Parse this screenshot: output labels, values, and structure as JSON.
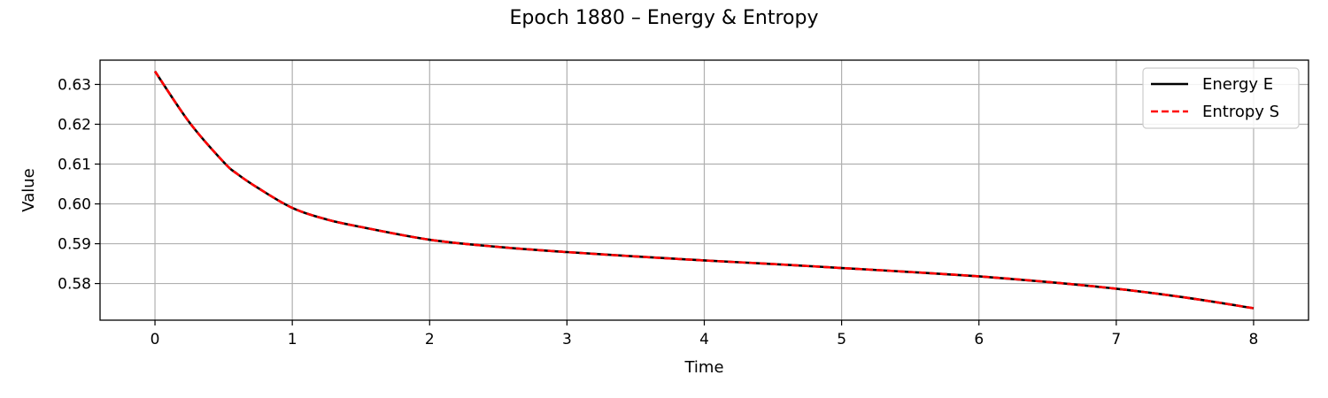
{
  "chart_data": {
    "type": "line",
    "title": "Epoch 1880 – Energy & Entropy",
    "xlabel": "Time",
    "ylabel": "Value",
    "xlim": [
      -0.4,
      8.4
    ],
    "ylim": [
      0.5708,
      0.6361
    ],
    "xticks": [
      0,
      1,
      2,
      3,
      4,
      5,
      6,
      7,
      8
    ],
    "yticks": [
      0.58,
      0.59,
      0.6,
      0.61,
      0.62,
      0.63
    ],
    "ytick_labels": [
      "0.58",
      "0.59",
      "0.60",
      "0.61",
      "0.62",
      "0.63"
    ],
    "grid": true,
    "legend_position": "top-right",
    "x": [
      0,
      0.25,
      0.5,
      0.6,
      0.75,
      1.0,
      1.25,
      1.5,
      2.0,
      2.5,
      3.0,
      3.5,
      4.0,
      4.5,
      5.0,
      5.5,
      6.0,
      6.5,
      7.0,
      7.5,
      8.0
    ],
    "series": [
      {
        "name": "Energy E",
        "color": "#000000",
        "style": "solid",
        "values": [
          0.6333,
          0.6205,
          0.6105,
          0.6075,
          0.604,
          0.599,
          0.5961,
          0.5942,
          0.591,
          0.5892,
          0.5879,
          0.5868,
          0.5858,
          0.5849,
          0.5839,
          0.5829,
          0.5818,
          0.5804,
          0.5787,
          0.5765,
          0.5738
        ]
      },
      {
        "name": "Entropy S",
        "color": "#ff0000",
        "style": "dashed",
        "values": [
          0.6333,
          0.6205,
          0.6105,
          0.6075,
          0.604,
          0.599,
          0.5961,
          0.5942,
          0.591,
          0.5892,
          0.5879,
          0.5868,
          0.5858,
          0.5849,
          0.5839,
          0.5829,
          0.5818,
          0.5804,
          0.5787,
          0.5765,
          0.5738
        ]
      }
    ]
  }
}
